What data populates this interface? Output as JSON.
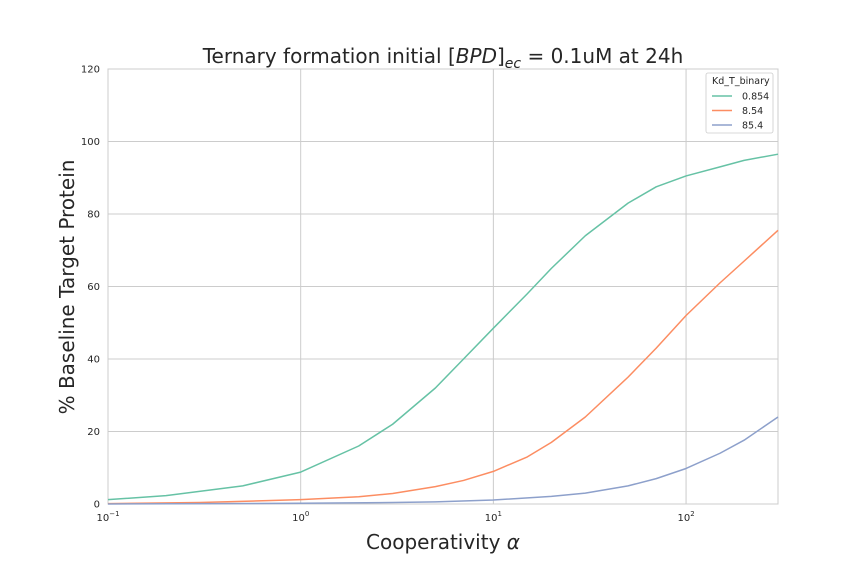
{
  "chart_data": {
    "type": "line",
    "title": "Ternary formation initial [BPD]ec = 0.1uM at 24h",
    "title_parts": {
      "prefix": "Ternary formation initial ",
      "bracket_open": "[",
      "math": "BPD",
      "bracket_close": "]",
      "subscript": "ec",
      "suffix": " = 0.1uM at 24h"
    },
    "xlabel": "Cooperativity α",
    "xlabel_parts": {
      "text": "Cooperativity ",
      "symbol": "α"
    },
    "ylabel": "% Baseline Target Protein",
    "xscale": "log",
    "xlim": [
      0.1,
      300
    ],
    "ylim": [
      0,
      120
    ],
    "yticks": [
      0,
      20,
      40,
      60,
      80,
      100,
      120
    ],
    "xticks": [
      0.1,
      1,
      10,
      100
    ],
    "xtick_labels": [
      {
        "base": "10",
        "exp": "−1"
      },
      {
        "base": "10",
        "exp": "0"
      },
      {
        "base": "10",
        "exp": "1"
      },
      {
        "base": "10",
        "exp": "2"
      }
    ],
    "grid": true,
    "legend": {
      "title": "Kd_T_binary",
      "position": "top-right"
    },
    "series": [
      {
        "name": "0.854",
        "color": "#66c2a5",
        "x": [
          0.1,
          0.2,
          0.5,
          1,
          2,
          3,
          5,
          7,
          10,
          15,
          20,
          30,
          50,
          70,
          100,
          150,
          200,
          300
        ],
        "y": [
          1.2,
          2.3,
          5.0,
          8.8,
          16,
          22,
          32,
          40,
          48.5,
          58,
          65,
          74,
          83,
          87.5,
          90.5,
          93,
          94.8,
          96.5
        ]
      },
      {
        "name": "8.54",
        "color": "#fc8d62",
        "x": [
          0.1,
          0.3,
          1,
          2,
          3,
          5,
          7,
          10,
          15,
          20,
          30,
          50,
          70,
          100,
          150,
          200,
          300
        ],
        "y": [
          0.1,
          0.4,
          1.2,
          2.0,
          2.9,
          4.8,
          6.5,
          9.0,
          13,
          17,
          24,
          35,
          43,
          52,
          61,
          67,
          75.5
        ]
      },
      {
        "name": "85.4",
        "color": "#8da0cb",
        "x": [
          0.1,
          1,
          3,
          5,
          10,
          20,
          30,
          50,
          70,
          100,
          150,
          200,
          300
        ],
        "y": [
          0.0,
          0.2,
          0.4,
          0.6,
          1.1,
          2.1,
          3.0,
          5.0,
          7.0,
          9.8,
          14.0,
          17.6,
          24.0
        ]
      }
    ]
  }
}
